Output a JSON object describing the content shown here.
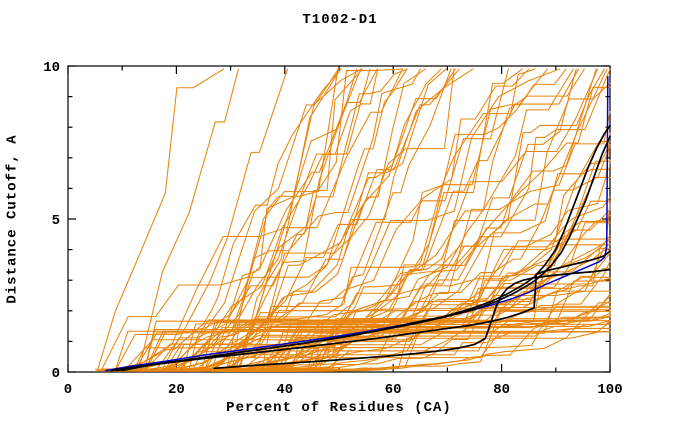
{
  "chart_data": {
    "type": "line",
    "title": "T1002-D1",
    "xlabel": "Percent of Residues (CA)",
    "ylabel": "Distance Cutoff, A",
    "xlim": [
      0,
      100
    ],
    "ylim": [
      0,
      10
    ],
    "x_major_ticks": [
      0,
      20,
      40,
      60,
      80,
      100
    ],
    "x_minor_step": 10,
    "y_major_ticks": [
      0,
      5,
      10
    ],
    "y_minor_step": 1,
    "grid": false,
    "legend": "none",
    "frame_color": "#000000",
    "background": "#ffffff",
    "colors": {
      "predictions": "#E8850F",
      "reference": "#0000CC",
      "highlight": "#000000"
    },
    "series": [
      {
        "name": "all-prediction-curves",
        "type": "generated-ensemble",
        "color": "#E8850F",
        "width": 1.05,
        "count": 95,
        "seed": 20240117,
        "gen": {
          "x0_min": 5,
          "x0_max": 32,
          "q_pow": 0.8,
          "L_base": 14,
          "L_span": 150,
          "k_base": 0.7,
          "k_span": 3.2,
          "y_top": 9.9,
          "jump_prob": 0.12
        }
      },
      {
        "name": "reference-curve-blue",
        "color": "#0000CC",
        "width": 1.5,
        "points": [
          [
            7,
            0.05
          ],
          [
            12,
            0.2
          ],
          [
            18,
            0.35
          ],
          [
            25,
            0.55
          ],
          [
            32,
            0.72
          ],
          [
            40,
            0.92
          ],
          [
            48,
            1.12
          ],
          [
            55,
            1.32
          ],
          [
            62,
            1.55
          ],
          [
            68,
            1.75
          ],
          [
            73,
            1.95
          ],
          [
            78,
            2.18
          ],
          [
            82,
            2.4
          ],
          [
            85,
            2.6
          ],
          [
            88,
            2.85
          ],
          [
            90,
            3.0
          ],
          [
            92,
            3.15
          ],
          [
            94,
            3.3
          ],
          [
            96,
            3.45
          ],
          [
            98,
            3.6
          ],
          [
            99,
            3.75
          ],
          [
            99.4,
            4.1
          ],
          [
            99.6,
            9.65
          ]
        ]
      },
      {
        "name": "highlighted-model-1",
        "color": "#000000",
        "width": 1.7,
        "points": [
          [
            8,
            0.05
          ],
          [
            13,
            0.18
          ],
          [
            20,
            0.35
          ],
          [
            28,
            0.55
          ],
          [
            36,
            0.75
          ],
          [
            44,
            0.95
          ],
          [
            52,
            1.18
          ],
          [
            58,
            1.38
          ],
          [
            64,
            1.58
          ],
          [
            70,
            1.82
          ],
          [
            75,
            2.05
          ],
          [
            79,
            2.3
          ],
          [
            82,
            2.55
          ],
          [
            85,
            2.85
          ],
          [
            87,
            3.1
          ],
          [
            89,
            3.45
          ],
          [
            91,
            3.9
          ],
          [
            92.5,
            4.4
          ],
          [
            94,
            5.0
          ],
          [
            95.5,
            5.6
          ],
          [
            96.5,
            6.1
          ],
          [
            97.5,
            6.6
          ],
          [
            98.5,
            7.1
          ],
          [
            99.5,
            7.5
          ],
          [
            100,
            7.7
          ]
        ]
      },
      {
        "name": "highlighted-model-2",
        "color": "#000000",
        "width": 1.7,
        "points": [
          [
            10,
            0.05
          ],
          [
            16,
            0.25
          ],
          [
            24,
            0.45
          ],
          [
            33,
            0.68
          ],
          [
            42,
            0.9
          ],
          [
            50,
            1.12
          ],
          [
            57,
            1.35
          ],
          [
            63,
            1.58
          ],
          [
            69,
            1.8
          ],
          [
            74,
            2.05
          ],
          [
            78,
            2.3
          ],
          [
            81,
            2.55
          ],
          [
            84,
            2.85
          ],
          [
            86,
            3.1
          ],
          [
            88,
            3.5
          ],
          [
            90,
            4.0
          ],
          [
            91.5,
            4.6
          ],
          [
            93,
            5.3
          ],
          [
            94.5,
            6.0
          ],
          [
            96,
            6.7
          ],
          [
            97.5,
            7.3
          ],
          [
            99,
            7.8
          ],
          [
            100,
            8.05
          ]
        ]
      },
      {
        "name": "highlighted-model-3",
        "color": "#000000",
        "width": 1.7,
        "points": [
          [
            9,
            0.05
          ],
          [
            16,
            0.25
          ],
          [
            24,
            0.42
          ],
          [
            33,
            0.6
          ],
          [
            42,
            0.78
          ],
          [
            50,
            0.95
          ],
          [
            57,
            1.1
          ],
          [
            63,
            1.25
          ],
          [
            69,
            1.4
          ],
          [
            74,
            1.52
          ],
          [
            78,
            1.65
          ],
          [
            81,
            1.78
          ],
          [
            84,
            1.95
          ],
          [
            86,
            2.1
          ],
          [
            86.4,
            3.2
          ],
          [
            88,
            3.3
          ],
          [
            91,
            3.42
          ],
          [
            94,
            3.55
          ],
          [
            97,
            3.68
          ],
          [
            99,
            3.8
          ],
          [
            100,
            3.95
          ]
        ]
      },
      {
        "name": "highlighted-model-4",
        "color": "#000000",
        "width": 1.7,
        "points": [
          [
            27,
            0.12
          ],
          [
            33,
            0.2
          ],
          [
            40,
            0.28
          ],
          [
            47,
            0.36
          ],
          [
            53,
            0.44
          ],
          [
            59,
            0.52
          ],
          [
            64,
            0.6
          ],
          [
            68,
            0.68
          ],
          [
            72,
            0.78
          ],
          [
            75,
            0.9
          ],
          [
            77,
            1.1
          ],
          [
            78,
            1.6
          ],
          [
            79,
            2.15
          ],
          [
            80,
            2.5
          ],
          [
            81,
            2.72
          ],
          [
            82.5,
            2.9
          ],
          [
            84,
            3.0
          ],
          [
            86,
            3.08
          ],
          [
            89,
            3.15
          ],
          [
            93,
            3.22
          ],
          [
            97,
            3.28
          ],
          [
            100,
            3.35
          ]
        ]
      }
    ]
  }
}
